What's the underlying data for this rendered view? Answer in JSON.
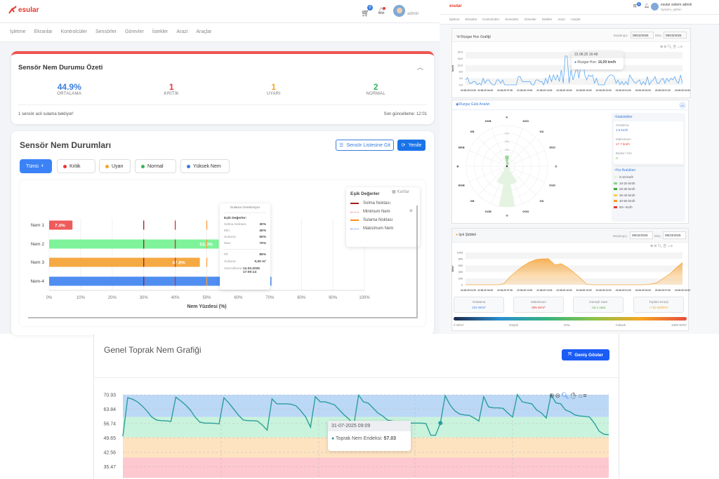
{
  "app": {
    "logo_text": "esular",
    "cart_count": "0",
    "user_name": "admin",
    "nav": [
      "İşletme",
      "Ekranlar",
      "Kontrolcüler",
      "Sensörler",
      "Görevler",
      "İstekler",
      "Arazi",
      "Araçlar"
    ]
  },
  "summary": {
    "title": "Sensör Nem Durumu Özeti",
    "stats": [
      {
        "value": "44.9%",
        "label": "ORTALAMA",
        "color": "#3b7ddd"
      },
      {
        "value": "1",
        "label": "KRİTİK",
        "color": "#e53935"
      },
      {
        "value": "1",
        "label": "UYARI",
        "color": "#f5a623"
      },
      {
        "value": "2",
        "label": "NORMAL",
        "color": "#34b55a"
      }
    ],
    "footer_left": "1 sensör acil sulama bekliyor!",
    "footer_right": "Son güncelleme: 12:01"
  },
  "sensors": {
    "title": "Sensör Nem Durumları",
    "list_button": "Sensör Listesine Git",
    "refresh_button": "Yenile",
    "filters": [
      {
        "label": "Tümü",
        "count": "4",
        "active": true
      },
      {
        "label": "Kritik",
        "color": "#e53935"
      },
      {
        "label": "Uyarı",
        "color": "#f5a623"
      },
      {
        "label": "Normal",
        "color": "#34b55a"
      },
      {
        "label": "Yüksek Nem",
        "color": "#3b7ddd"
      }
    ],
    "cards_button": "Kartlar",
    "legend": {
      "title": "Eşik Değerler",
      "items": [
        {
          "label": "Solma Noktası",
          "color": "#a61c1c",
          "style": "solid"
        },
        {
          "label": "Minimum Nem",
          "color": "#e57373",
          "style": "wavy"
        },
        {
          "label": "Sulama Noktası",
          "color": "#ff8c1a",
          "style": "solid"
        },
        {
          "label": "Maksimum Nem",
          "color": "#4a7bdc",
          "style": "wavy"
        }
      ]
    },
    "tooltip": {
      "status": "Sulama Gerekmiyor",
      "thresholds_title": "Eşik Değerler:",
      "rows": [
        {
          "k": "Solma Noktası:",
          "v": "30%"
        },
        {
          "k": "Min:",
          "v": "40%"
        },
        {
          "k": "Sulama:",
          "v": "50%"
        },
        {
          "k": "Max:",
          "v": "70%"
        }
      ],
      "battery_k": "Pil:",
      "battery_v": "85%",
      "irrigation_k": "Sulama:",
      "irrigation_v": "0,00 m³",
      "updated_k": "Güncelleme:",
      "updated_v": "12.03.2025 17:00:14"
    }
  },
  "chart_data": [
    {
      "type": "bar",
      "orientation": "horizontal",
      "categories": [
        "Nem 1",
        "Nem 2",
        "Nem 3",
        "Nem-4"
      ],
      "values": [
        7.4,
        53.8,
        47.8,
        70.5
      ],
      "value_labels": [
        "7.4%",
        "53.8%",
        "47.8%",
        "70.5%"
      ],
      "colors": [
        "#ef5b5b",
        "#7ef39a",
        "#f5a942",
        "#4f8ef0"
      ],
      "thresholds": [
        {
          "value": 30,
          "color": "#a61c1c"
        },
        {
          "value": 40,
          "color": "#d32f2f"
        },
        {
          "value": 50,
          "color": "#ff9c3a"
        }
      ],
      "xlabel": "Nem Yüzdesi (%)",
      "xlim": [
        0,
        100
      ],
      "xticks": [
        "0%",
        "10%",
        "20%",
        "30%",
        "40%",
        "50%",
        "60%",
        "70%",
        "80%",
        "90%",
        "100%"
      ],
      "grid": true
    },
    {
      "type": "line",
      "title": "Rüzgar Hızı Grafiği",
      "ylabel": "km/h",
      "ylim": [
        0,
        20
      ],
      "yticks": [
        "0.0",
        "4.0",
        "8.0",
        "12.0",
        "16.0",
        "20.0"
      ],
      "xticks": [
        "22.08.25 01:00",
        "22.08.25 04:00",
        "22.08.25 07:00",
        "22.08.25 10:00",
        "22.08.25 13:00",
        "22.08.25 16:00",
        "22.08.25 19:00",
        "22.08.25 22:00",
        "23.08.25 01:00",
        "23.08.25 04:00",
        "23.08.25 07:00",
        "23.08.25 10:00"
      ],
      "color": "#5aa9f5",
      "values": [
        3,
        4.5,
        1,
        1,
        2,
        2,
        0,
        1,
        0,
        4,
        1,
        3,
        3,
        1,
        0,
        0,
        3,
        3,
        1,
        3,
        0,
        0,
        0,
        0,
        0,
        0,
        0,
        5,
        5,
        2,
        2,
        2,
        2,
        2,
        0,
        0,
        3,
        3,
        2,
        2,
        0,
        4,
        1,
        6,
        2,
        6,
        3,
        6,
        2,
        9,
        1,
        17.5,
        17.5,
        1,
        9,
        3,
        7,
        11,
        4,
        12,
        16.09,
        6,
        3,
        6,
        5,
        6,
        1,
        4,
        0,
        0,
        0,
        0,
        3,
        5,
        6,
        6,
        5,
        1,
        3,
        0,
        2,
        0,
        2,
        0,
        6,
        4,
        2,
        1,
        2,
        3,
        0,
        2,
        0,
        5,
        0,
        2,
        3,
        5,
        1,
        1,
        3,
        4,
        1,
        4,
        2,
        4,
        3,
        5,
        2,
        1,
        6,
        1
      ],
      "tooltip": {
        "title": "22.08.25 16:48",
        "series": "Rüzgar Hızı:",
        "value": "16,09 km/h"
      },
      "date_start_label": "Başlangıç:",
      "date_start": "08/22/2025",
      "date_end_label": "Bitiş:",
      "date_end": "08/23/2025"
    },
    {
      "type": "area",
      "title": "Işık Şiddeti",
      "ylabel": "W/m²",
      "ylim": [
        0,
        1000
      ],
      "yticks": [
        "0",
        "200",
        "400",
        "600",
        "800",
        "1000"
      ],
      "xticks": [
        "22.08.25 01:00",
        "22.08.25 04:00",
        "22.08.25 07:00",
        "22.08.25 10:00",
        "22.08.25 13:00",
        "22.08.25 16:00",
        "22.08.25 19:00",
        "22.08.25 22:00",
        "23.08.25 01:00",
        "23.08.25 04:00",
        "23.08.25 07:00",
        "23.08.25 10:00"
      ],
      "color": "#f5a742",
      "values": [
        0,
        0,
        0,
        0,
        0,
        0,
        30,
        250,
        420,
        580,
        700,
        780,
        800,
        805,
        620,
        650,
        530,
        380,
        200,
        10,
        0,
        0,
        0,
        0,
        0,
        0,
        0,
        0,
        0,
        20,
        60,
        200,
        330,
        520,
        690
      ],
      "date_start_label": "Başlangıç:",
      "date_start": "08/22/2025",
      "date_end_label": "Bitiş:",
      "date_end": "08/23/2025"
    },
    {
      "type": "line",
      "title": "Genel Toprak Nem Grafiği",
      "yticks": [
        "70.93",
        "63.84",
        "56.74",
        "49.65",
        "42.56",
        "35.47"
      ],
      "ylim": [
        30,
        71
      ],
      "bands": [
        {
          "from": 60,
          "to": 71,
          "color": "#bcd8f7"
        },
        {
          "from": 50,
          "to": 60,
          "color": "#c9f3dc"
        },
        {
          "from": 40,
          "to": 50,
          "color": "#fde3c0"
        },
        {
          "from": 30,
          "to": 40,
          "color": "#fdc8cf"
        }
      ],
      "color": "#2b9e9a",
      "values": [
        50.5,
        69.5,
        68.8,
        67.5,
        65.5,
        63,
        60,
        58.5,
        58.2,
        58.1,
        57.8,
        69.8,
        68,
        66,
        63.5,
        60,
        57.5,
        57,
        57,
        56.9,
        56.6,
        69.5,
        67,
        64,
        61,
        58.5,
        58.2,
        58.2,
        58,
        56,
        53.5,
        69,
        66.5,
        66.5,
        66.5,
        66.3,
        65.5,
        63,
        60,
        55,
        70,
        67.5,
        67.5,
        66.8,
        66,
        63.5,
        61,
        59,
        56,
        70.8,
        67.5,
        66.8,
        64.5,
        62,
        60.5,
        58.5,
        58,
        57.8,
        57.5,
        57.3,
        57,
        57,
        57,
        56.8,
        51,
        51,
        57.03,
        70.5,
        66,
        63,
        61.5,
        61,
        60.8,
        59.5,
        58,
        70,
        65,
        64.5,
        64.5,
        64.3,
        62,
        60,
        71,
        67.5,
        67,
        66.5,
        63.5,
        62,
        59.5,
        71,
        67,
        66.5,
        63.5,
        62.5,
        61,
        60.5,
        60.3,
        60,
        57,
        53,
        51.5,
        51.3
      ],
      "tooltip": {
        "title": "31-07-2025 09:09",
        "series": "Toprak Nem Endeksi:",
        "value": "57.03"
      },
      "expand_button": "Geniş Göster"
    }
  ],
  "wind_rose": {
    "title": "Rüzgar Gülü Analizi",
    "directions": [
      "K",
      "KKD",
      "KD",
      "DKD",
      "D",
      "DGD",
      "GD",
      "GGD",
      "G",
      "GGB",
      "GB",
      "BGB",
      "B",
      "BKB",
      "KB",
      "KKB"
    ],
    "ring_labels": [
      "10%",
      "20%",
      "30%",
      "40%"
    ],
    "petals_0_10": [
      0,
      0,
      0,
      0,
      0,
      0,
      3,
      14,
      38,
      14,
      3,
      0,
      0,
      0,
      0,
      0
    ],
    "petals_10_20": [
      8,
      3,
      0,
      0,
      0,
      0,
      0,
      0,
      0,
      0,
      0,
      0,
      0,
      0,
      0,
      0
    ],
    "stats_title": "İstatistikler",
    "stats": [
      {
        "label": "Ortalama",
        "value": "2.9 km/h",
        "color": "#3b7ddd"
      },
      {
        "label": "Maksimum",
        "value": "17.7 km/h",
        "color": "#e53935"
      },
      {
        "label": "Baskın Yön",
        "value": "G",
        "color": "#6cc04a"
      }
    ],
    "ranges_title": "Hız Aralıkları",
    "ranges": [
      {
        "label": "0-10 km/h",
        "color": "#e3f3e1"
      },
      {
        "label": "10-20 km/h",
        "color": "#8fd18b"
      },
      {
        "label": "20-30 km/h",
        "color": "#3fa63f"
      },
      {
        "label": "30-40 km/h",
        "color": "#f6d04d"
      },
      {
        "label": "40-50 km/h",
        "color": "#f59a23"
      },
      {
        "label": "50+ km/h",
        "color": "#e53935"
      }
    ]
  },
  "light_stats": [
    {
      "label": "Ortalama",
      "value": "224 W/m²",
      "color": "#3b7ddd"
    },
    {
      "label": "Maksimum",
      "value": "805 W/m²",
      "color": "#e53935"
    },
    {
      "label": "Güneşli Saat",
      "value": "-15.1 saat",
      "color": "#52b043"
    },
    {
      "label": "Toplam Enerji",
      "value": "-7.92 kWh/m²",
      "color": "#f5a623"
    }
  ],
  "light_scale": [
    "0 W/m²",
    "Düşük",
    "Orta",
    "Yüksek",
    "1000 W/m²"
  ],
  "admin_panel": {
    "user_name": "esular sistem admin",
    "user_role": "System_admin",
    "cart_count": "0"
  }
}
